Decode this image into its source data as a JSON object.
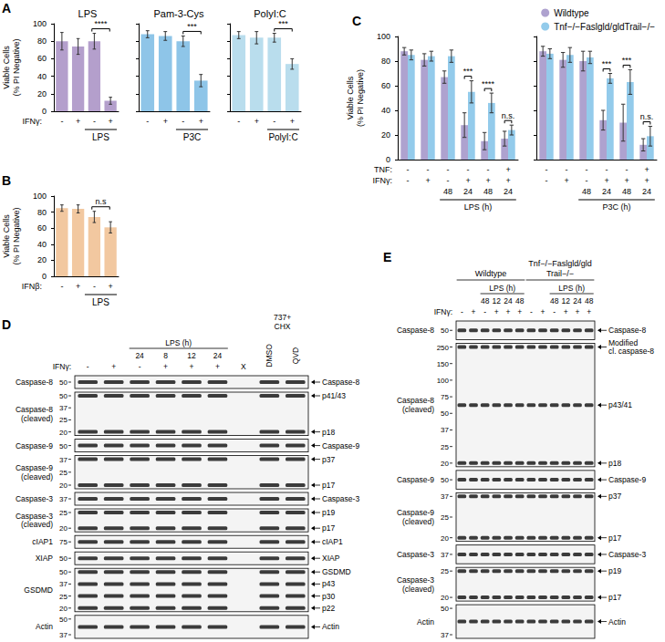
{
  "chart_data": [
    {
      "panel": "A",
      "type": "bar",
      "title": "LPS",
      "ylabel": "Viable Cells\n(% PI Negative)",
      "category_rows": [
        {
          "label": "IFNγ:",
          "values": [
            "-",
            "+",
            "-",
            "+"
          ]
        }
      ],
      "treatment": [
        null,
        null,
        "LPS",
        "LPS"
      ],
      "series": [
        {
          "color": "#b49fcc",
          "values": [
            80,
            74,
            80,
            12
          ],
          "errors": [
            10,
            9,
            9,
            4
          ]
        }
      ],
      "significance": [
        null,
        null,
        null,
        "****"
      ],
      "ylim": [
        0,
        100
      ],
      "yticks": [
        0,
        20,
        40,
        60,
        80,
        100
      ],
      "grid": false
    },
    {
      "type": "bar",
      "title": "Pam-3-Cys",
      "category_rows": [
        {
          "values": [
            "-",
            "+",
            "-",
            "+"
          ]
        }
      ],
      "treatment": [
        null,
        null,
        "P3C",
        "P3C"
      ],
      "series": [
        {
          "color": "#8ec5e8",
          "values": [
            88,
            86,
            80,
            35
          ],
          "errors": [
            4,
            5,
            6,
            7
          ]
        }
      ],
      "significance": [
        null,
        null,
        null,
        "***"
      ],
      "ylim": [
        0,
        100
      ],
      "yticks": [
        0,
        20,
        40,
        60,
        80,
        100
      ],
      "grid": false,
      "tick_labels": "x"
    },
    {
      "type": "bar",
      "title": "PolyI:C",
      "category_rows": [
        {
          "values": [
            "-",
            "+",
            "-",
            "+"
          ]
        }
      ],
      "treatment": [
        null,
        null,
        "PolyI:C",
        "PolyI:C"
      ],
      "series": [
        {
          "color": "#b9dded",
          "values": [
            87,
            84,
            84,
            54
          ],
          "errors": [
            4,
            7,
            5,
            6
          ]
        }
      ],
      "significance": [
        null,
        null,
        null,
        "***"
      ],
      "ylim": [
        0,
        100
      ],
      "yticks": [
        0,
        20,
        40,
        60,
        80,
        100
      ],
      "grid": false,
      "tick_labels": "x"
    },
    {
      "panel": "B",
      "type": "bar",
      "ylabel": "Viable Cells\n(% PI Negative)",
      "category_rows": [
        {
          "label": "IFNβ:",
          "values": [
            "-",
            "+",
            "-",
            "+"
          ]
        }
      ],
      "treatment": [
        null,
        null,
        "LPS",
        "LPS"
      ],
      "series": [
        {
          "color": "#f2c8a0",
          "values": [
            85,
            84,
            74,
            61
          ],
          "errors": [
            4,
            5,
            7,
            7
          ]
        }
      ],
      "significance": [
        null,
        null,
        null,
        "n.s"
      ],
      "ylim": [
        0,
        100
      ],
      "yticks": [
        0,
        20,
        40,
        60,
        80,
        100
      ],
      "grid": false
    },
    {
      "panel": "C",
      "type": "bar",
      "ylabel": "Viable Cells\n(% PI Negative)",
      "category_rows": [
        {
          "label": "TNF:",
          "values": [
            "-",
            "-",
            "-",
            "-",
            "-",
            "+"
          ]
        },
        {
          "label": "IFNγ:",
          "values": [
            "-",
            "+",
            "-",
            "+",
            "+",
            "+"
          ]
        },
        {
          "values": [
            null,
            null,
            "48",
            "24",
            "48",
            "24"
          ]
        }
      ],
      "treatment": [
        null,
        null,
        "LPS (h)",
        "LPS (h)",
        "LPS (h)",
        "LPS (h)"
      ],
      "series": [
        {
          "name": "Wildtype",
          "color": "#aea2cf",
          "values": [
            88,
            81,
            67,
            28,
            15,
            17
          ],
          "errors": [
            3,
            5,
            5,
            10,
            7,
            6
          ]
        },
        {
          "name": "Tnf−/−Faslgld/gldTrail−/−",
          "color": "#93cbeb",
          "values": [
            85,
            84,
            84,
            55,
            46,
            24
          ],
          "errors": [
            4,
            4,
            5,
            9,
            8,
            4
          ]
        }
      ],
      "significance": [
        null,
        null,
        null,
        "***",
        "****",
        "n.s."
      ],
      "ylim": [
        0,
        100
      ],
      "yticks": [
        0,
        20,
        40,
        60,
        80,
        100
      ],
      "grid": false,
      "legend": "upper right"
    },
    {
      "type": "bar",
      "category_rows": [
        {
          "values": [
            "-",
            "-",
            "-",
            "-",
            "-",
            "+"
          ]
        },
        {
          "values": [
            "-",
            "+",
            "-",
            "+",
            "+",
            "+"
          ]
        },
        {
          "values": [
            null,
            null,
            "48",
            "24",
            "48",
            "24"
          ]
        }
      ],
      "treatment": [
        null,
        null,
        "P3C (h)",
        "P3C (h)",
        "P3C (h)",
        "P3C (h)"
      ],
      "series": [
        {
          "name": "Wildtype",
          "color": "#aea2cf",
          "values": [
            88,
            81,
            80,
            32,
            30,
            12
          ],
          "errors": [
            4,
            6,
            8,
            8,
            15,
            5
          ]
        },
        {
          "name": "Tnf−/−Faslgld/gldTrail−/−",
          "color": "#93cbeb",
          "values": [
            86,
            85,
            83,
            66,
            63,
            19
          ],
          "errors": [
            4,
            6,
            5,
            4,
            10,
            8
          ]
        }
      ],
      "significance": [
        null,
        null,
        null,
        "***",
        "***",
        "n.s."
      ],
      "ylim": [
        0,
        100
      ],
      "yticks": [
        0,
        20,
        40,
        60,
        80,
        100
      ],
      "grid": false,
      "tick_labels": "x"
    }
  ],
  "blots": [
    {
      "panel": "D",
      "header_label": "IFNγ:",
      "time_label": "LPS (h)",
      "treatment_header": [
        "737+",
        "CHX"
      ],
      "lanes": [
        {
          "ifng": "-"
        },
        {
          "ifng": "+"
        },
        {
          "ifng": "-",
          "time": "24"
        },
        {
          "ifng": "+",
          "time": "8"
        },
        {
          "ifng": "+",
          "time": "12"
        },
        {
          "ifng": "+",
          "time": "24"
        },
        {
          "mark": "X"
        },
        {
          "treatment": "DMSO"
        },
        {
          "treatment": "QVD"
        }
      ],
      "rows": [
        {
          "label": "Caspase-8",
          "mw": [
            50
          ],
          "bands": [
            "Caspase-8"
          ]
        },
        {
          "label": "Caspase-8\n(cleaved)",
          "mw": [
            50,
            37,
            25,
            20
          ],
          "bands": [
            "p41/43",
            "p18"
          ]
        },
        {
          "label": "Caspase-9",
          "mw": [
            50
          ],
          "bands": [
            "Caspase-9"
          ]
        },
        {
          "label": "Caspase-9\n(cleaved)",
          "mw": [
            37,
            25,
            20
          ],
          "bands": [
            "p37",
            "p17"
          ]
        },
        {
          "label": "Caspase-3",
          "mw": [
            37
          ],
          "bands": [
            "Caspase-3"
          ]
        },
        {
          "label": "Caspase-3\n(cleaved)",
          "mw": [
            25,
            20
          ],
          "bands": [
            "p19",
            "p17"
          ]
        },
        {
          "label": "cIAP1",
          "mw": [
            75
          ],
          "bands": [
            "cIAP1"
          ]
        },
        {
          "label": "XIAP",
          "mw": [
            50
          ],
          "bands": [
            "XIAP"
          ]
        },
        {
          "label": "GSDMD",
          "mw": [
            50,
            37,
            25,
            20
          ],
          "bands": [
            "GSDMD",
            "p43",
            "p30",
            "p22"
          ]
        },
        {
          "label": "Actin",
          "mw": [
            50,
            37
          ],
          "bands": [
            "Actin"
          ]
        }
      ]
    },
    {
      "panel": "E",
      "header_label": "IFNγ:",
      "time_label": "LPS (h)",
      "groups": [
        {
          "name": [
            "Wildtype"
          ],
          "lanes": [
            {
              "ifng": "-"
            },
            {
              "ifng": "+"
            },
            {
              "ifng": "-",
              "time": "48"
            },
            {
              "ifng": "+",
              "time": "12"
            },
            {
              "ifng": "+",
              "time": "24"
            },
            {
              "ifng": "+",
              "time": "48"
            }
          ]
        },
        {
          "name": [
            "Tnf−/−Faslgld/gld",
            "Trail−/−"
          ],
          "lanes": [
            {
              "ifng": "-"
            },
            {
              "ifng": "+"
            },
            {
              "ifng": "-",
              "time": "48"
            },
            {
              "ifng": "+",
              "time": "12"
            },
            {
              "ifng": "+",
              "time": "24"
            },
            {
              "ifng": "+",
              "time": "48"
            }
          ]
        }
      ],
      "rows": [
        {
          "label": "Caspase-8",
          "mw": [
            50
          ],
          "bands": [
            "Caspase-8"
          ]
        },
        {
          "label": "Caspase-8\n(cleaved)",
          "mw": [
            250,
            150,
            100,
            75,
            50,
            37,
            25,
            20
          ],
          "bands": [
            "Modified\ncl. caspase-8",
            "p43/41",
            "p18"
          ]
        },
        {
          "label": "Caspase-9",
          "mw": [
            50
          ],
          "bands": [
            "Caspase-9"
          ]
        },
        {
          "label": "Caspase-9\n(cleaved)",
          "mw": [
            37,
            25,
            20
          ],
          "bands": [
            "p37",
            "p17"
          ]
        },
        {
          "label": "Caspase-3",
          "mw": [
            37
          ],
          "bands": [
            "Caspase-3"
          ]
        },
        {
          "label": "Caspase-3\n(cleaved)",
          "mw": [
            25,
            20
          ],
          "bands": [
            "p19",
            "p17"
          ]
        },
        {
          "label": "Actin",
          "mw": [
            50,
            37
          ],
          "bands": [
            "Actin"
          ]
        }
      ]
    }
  ]
}
